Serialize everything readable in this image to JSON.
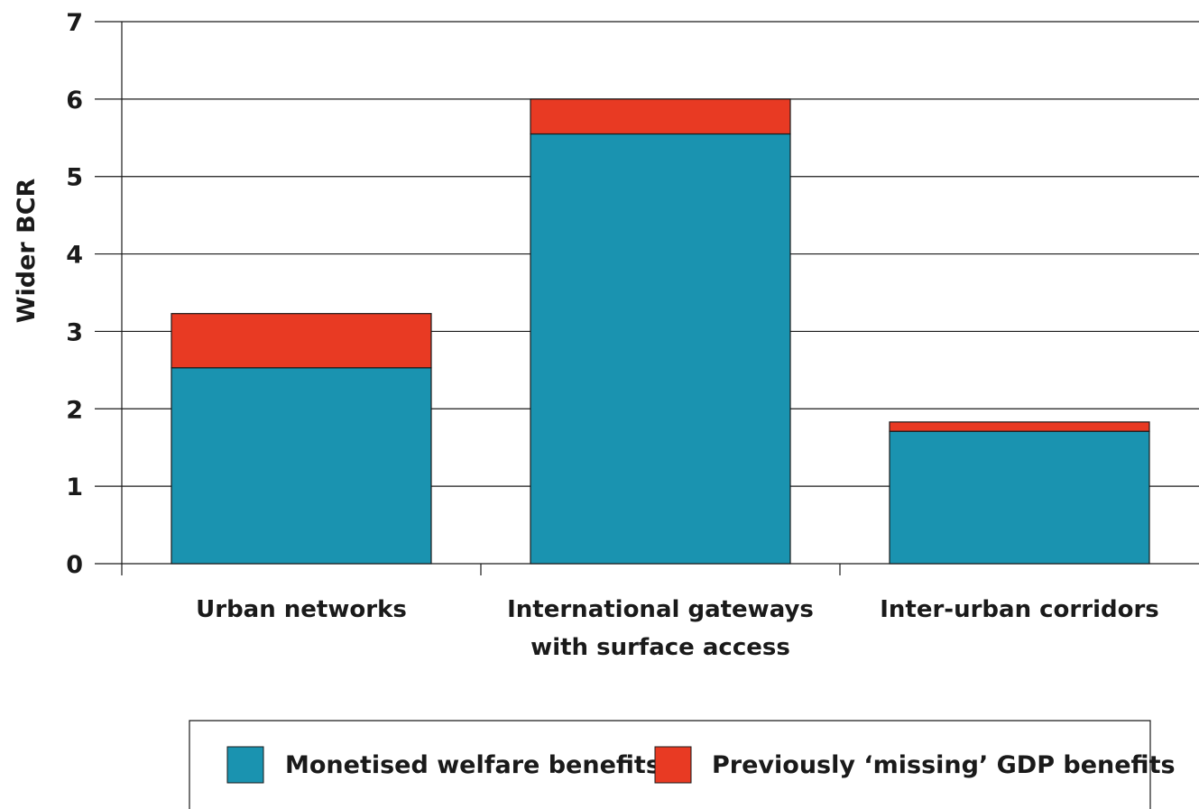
{
  "chart_data": {
    "type": "bar",
    "stacked": true,
    "categories": [
      [
        "Urban networks"
      ],
      [
        "International gateways",
        "with surface access"
      ],
      [
        "Inter-urban corridors"
      ]
    ],
    "series": [
      {
        "name": "Monetised welfare benefits",
        "color": "#1a93b0",
        "values": [
          2.53,
          5.55,
          1.71
        ]
      },
      {
        "name": "Previously ‘missing’ GDP benefits",
        "color": "#e83a23",
        "values": [
          0.7,
          0.45,
          0.12
        ]
      }
    ],
    "ylabel": "Wider BCR",
    "xlabel": "",
    "title": "",
    "ylim": [
      0,
      7
    ],
    "yticks": [
      0,
      1,
      2,
      3,
      4,
      5,
      6,
      7
    ],
    "grid": true,
    "legend_position": "bottom"
  }
}
